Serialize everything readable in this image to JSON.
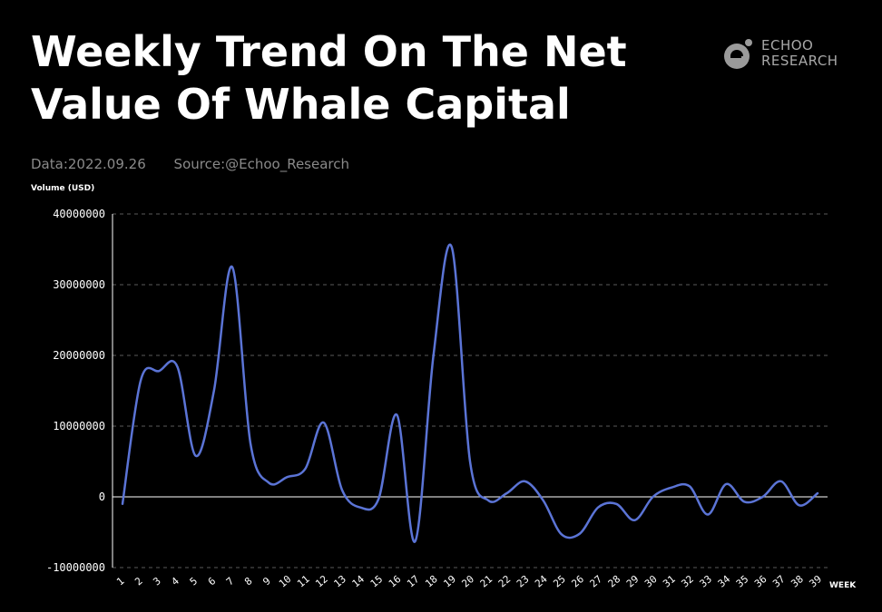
{
  "header": {
    "title": "Weekly Trend On The Net Value Of Whale Capital",
    "logo_line1": "ECHOO",
    "logo_line2": "RESEARCH",
    "date_text": "Data:2022.09.26",
    "source_text": "Source:@Echoo_Research"
  },
  "colors": {
    "background": "#000000",
    "line": "#5b74d6",
    "grid": "#5a5a5a",
    "axis": "#ffffff"
  },
  "chart_data": {
    "type": "line",
    "title": "Weekly Trend On The Net Value Of Whale Capital",
    "ylabel": "Volume (USD)",
    "xlabel": "WEEK",
    "ylim": [
      -10000000,
      40000000
    ],
    "yticks": [
      -10000000,
      0,
      10000000,
      20000000,
      30000000,
      40000000
    ],
    "grid": "horizontal dashed",
    "legend": "none",
    "x": [
      1,
      2,
      3,
      4,
      5,
      6,
      7,
      8,
      9,
      10,
      11,
      12,
      13,
      14,
      15,
      16,
      17,
      18,
      19,
      20,
      21,
      22,
      23,
      24,
      25,
      26,
      27,
      28,
      29,
      30,
      31,
      32,
      33,
      34,
      35,
      36,
      37,
      38,
      39
    ],
    "series": [
      {
        "values": [
          -1000000,
          16500000,
          17800000,
          18400000,
          5800000,
          15000000,
          32500000,
          7500000,
          2000000,
          2800000,
          4000000,
          10500000,
          1000000,
          -1500000,
          -300000,
          11600000,
          -6300000,
          20000000,
          35300000,
          5000000,
          -500000,
          500000,
          2200000,
          -500000,
          -5300000,
          -5200000,
          -1500000,
          -1000000,
          -3300000,
          0,
          1300000,
          1500000,
          -2500000,
          1800000,
          -700000,
          0,
          2200000,
          -1200000,
          500000
        ]
      }
    ]
  }
}
